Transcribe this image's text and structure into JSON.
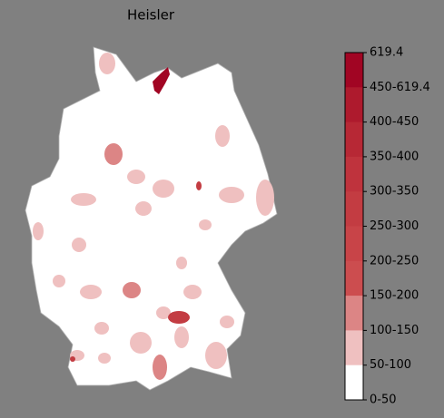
{
  "title": "Heisler",
  "colorbar": {
    "labels": [
      "619.4",
      "450-619.4",
      "400-450",
      "350-400",
      "300-350",
      "250-300",
      "200-250",
      "150-200",
      "100-150",
      "50-100",
      "0-50"
    ],
    "colors": [
      "#a10523",
      "#ae1a2d",
      "#b72835",
      "#bf333d",
      "#c33c42",
      "#c84448",
      "#cc4d4f",
      "#dc8585",
      "#efc0c0",
      "#ffffff"
    ]
  }
}
